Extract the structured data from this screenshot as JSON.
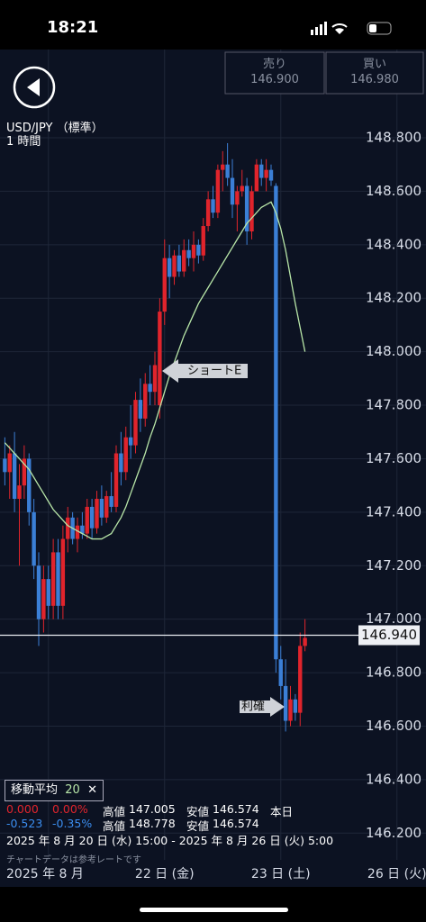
{
  "status_bar": {
    "time": "18:21"
  },
  "quote": {
    "sell_label": "売り",
    "sell": "146.900",
    "buy_label": "買い",
    "buy": "146.980"
  },
  "symbol": "USD/JPY （標準）",
  "timeframe": "1 時間",
  "chart_data": {
    "type": "candlestick",
    "x": [
      1,
      2,
      3,
      4,
      5,
      6,
      7,
      8,
      9,
      10,
      11,
      12,
      13,
      14,
      15,
      16,
      17,
      18,
      19,
      20,
      21,
      22,
      23,
      24,
      25,
      26,
      27,
      28,
      29,
      30,
      31,
      32,
      33,
      34,
      35,
      36,
      37,
      38,
      39,
      40,
      41,
      42,
      43,
      44,
      45,
      46,
      47,
      48,
      49,
      50,
      51,
      52,
      53,
      54,
      55,
      56,
      57,
      58,
      59,
      60,
      61,
      62,
      63
    ],
    "open": [
      147.6,
      147.55,
      147.62,
      147.45,
      147.5,
      147.6,
      147.4,
      147.2,
      147.0,
      147.15,
      147.05,
      147.25,
      147.05,
      147.3,
      147.38,
      147.3,
      147.35,
      147.32,
      147.42,
      147.34,
      147.45,
      147.38,
      147.46,
      147.42,
      147.62,
      147.55,
      147.68,
      147.65,
      147.82,
      147.75,
      147.88,
      147.85,
      147.8,
      148.15,
      148.35,
      148.28,
      148.36,
      148.3,
      148.38,
      148.35,
      148.4,
      148.36,
      148.47,
      148.57,
      148.52,
      148.68,
      148.7,
      148.65,
      148.55,
      148.6,
      148.62,
      148.45,
      148.6,
      148.7,
      148.65,
      148.68,
      148.62,
      146.85,
      146.75,
      146.62,
      146.7,
      146.65,
      146.9
    ],
    "high": [
      147.68,
      147.65,
      147.7,
      147.58,
      147.65,
      147.62,
      147.45,
      147.25,
      147.2,
      147.2,
      147.3,
      147.3,
      147.35,
      147.42,
      147.4,
      147.38,
      147.4,
      147.45,
      147.45,
      147.48,
      147.5,
      147.48,
      147.55,
      147.65,
      147.7,
      147.72,
      147.8,
      147.85,
      147.9,
      147.92,
      147.95,
      148.0,
      148.2,
      148.42,
      148.4,
      148.38,
      148.4,
      148.42,
      148.42,
      148.45,
      148.42,
      148.5,
      148.6,
      148.62,
      148.7,
      148.75,
      148.78,
      148.72,
      148.62,
      148.68,
      148.65,
      148.62,
      148.72,
      148.72,
      148.72,
      148.7,
      148.63,
      146.9,
      146.85,
      146.75,
      146.72,
      146.95,
      147.0
    ],
    "low": [
      147.5,
      147.45,
      147.4,
      147.2,
      147.45,
      147.35,
      147.15,
      146.9,
      146.95,
      147.0,
      147.0,
      147.0,
      147.0,
      147.25,
      147.28,
      147.25,
      147.3,
      147.3,
      147.3,
      147.32,
      147.35,
      147.36,
      147.4,
      147.4,
      147.5,
      147.52,
      147.6,
      147.62,
      147.7,
      147.72,
      147.8,
      147.8,
      147.75,
      148.1,
      148.2,
      148.25,
      148.28,
      148.28,
      148.32,
      148.3,
      148.33,
      148.34,
      148.45,
      148.5,
      148.5,
      148.6,
      148.62,
      148.5,
      148.45,
      148.58,
      148.4,
      148.42,
      148.6,
      148.62,
      148.6,
      148.62,
      146.8,
      146.7,
      146.58,
      146.6,
      146.62,
      146.6,
      146.88
    ],
    "close": [
      147.55,
      147.62,
      147.45,
      147.5,
      147.6,
      147.4,
      147.2,
      147.0,
      147.15,
      147.05,
      147.25,
      147.05,
      147.3,
      147.38,
      147.3,
      147.35,
      147.32,
      147.42,
      147.34,
      147.45,
      147.38,
      147.46,
      147.42,
      147.62,
      147.55,
      147.68,
      147.65,
      147.82,
      147.75,
      147.88,
      147.85,
      147.95,
      148.15,
      148.35,
      148.28,
      148.36,
      148.3,
      148.38,
      148.35,
      148.4,
      148.36,
      148.47,
      148.57,
      148.52,
      148.68,
      148.7,
      148.65,
      148.55,
      148.6,
      148.62,
      148.45,
      148.6,
      148.7,
      148.65,
      148.68,
      148.64,
      146.85,
      146.75,
      146.62,
      146.7,
      146.65,
      146.9,
      146.93
    ],
    "up_color": "#e0242c",
    "down_color": "#3b7fd6",
    "ma": {
      "name": "移動平均",
      "period": 20,
      "color": "#b8e6a8",
      "values": [
        147.66,
        147.64,
        147.62,
        147.6,
        147.58,
        147.56,
        147.53,
        147.5,
        147.47,
        147.44,
        147.41,
        147.39,
        147.37,
        147.35,
        147.34,
        147.33,
        147.32,
        147.31,
        147.3,
        147.3,
        147.3,
        147.31,
        147.32,
        147.35,
        147.38,
        147.42,
        147.47,
        147.52,
        147.57,
        147.62,
        147.68,
        147.73,
        147.79,
        147.85,
        147.91,
        147.96,
        148.01,
        148.06,
        148.1,
        148.14,
        148.18,
        148.21,
        148.24,
        148.27,
        148.3,
        148.33,
        148.36,
        148.39,
        148.42,
        148.45,
        148.48,
        148.5,
        148.52,
        148.54,
        148.55,
        148.56,
        148.52,
        148.46,
        148.38,
        148.28,
        148.18,
        148.09,
        148.0
      ]
    },
    "price_line": {
      "value": 146.94,
      "label": "146.940"
    },
    "annotations": [
      "ショートE",
      "利確"
    ],
    "xlim": [
      0,
      88
    ],
    "xticks": [
      {
        "value": 10,
        "label": "2025 年 8 月"
      },
      {
        "value": 34,
        "label": "22 日 (金)"
      },
      {
        "value": 58,
        "label": "23 日 (土)"
      },
      {
        "value": 82,
        "label": "26 日 (火)"
      }
    ],
    "ylim": [
      146.1,
      149.13
    ],
    "yticks": [
      {
        "value": 146.2,
        "label": "146.200"
      },
      {
        "value": 146.4,
        "label": "146.400"
      },
      {
        "value": 146.6,
        "label": "146.600"
      },
      {
        "value": 146.8,
        "label": "146.800"
      },
      {
        "value": 147.0,
        "label": "147.000"
      },
      {
        "value": 147.2,
        "label": "147.200"
      },
      {
        "value": 147.4,
        "label": "147.400"
      },
      {
        "value": 147.6,
        "label": "147.600"
      },
      {
        "value": 147.8,
        "label": "147.800"
      },
      {
        "value": 148.0,
        "label": "148.000"
      },
      {
        "value": 148.2,
        "label": "148.200"
      },
      {
        "value": 148.4,
        "label": "148.400"
      },
      {
        "value": 148.6,
        "label": "148.600"
      },
      {
        "value": 148.8,
        "label": "148.800"
      }
    ],
    "grid": true
  },
  "info": {
    "rows": [
      [
        "0.000",
        "0.00%",
        "高値",
        "147.005",
        "安値",
        "146.574",
        "本日"
      ],
      [
        "-0.523",
        "-0.35%",
        "高値",
        "148.778",
        "安値",
        "146.574"
      ]
    ],
    "range": "2025 年 8 月 20 日 (水) 15:00 - 2025 年 8 月 26 日 (火) 5:00",
    "note": "チャートデータは参考レートです"
  }
}
